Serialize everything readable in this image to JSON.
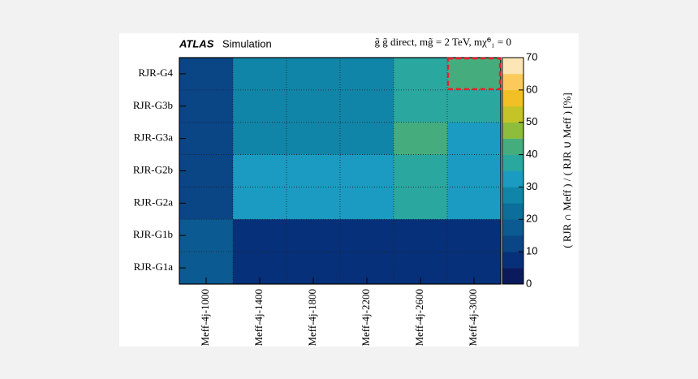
{
  "chart_data": {
    "type": "heatmap",
    "experiment": "ATLAS",
    "experiment_note": "Simulation",
    "process_label": "g̃ g̃ direct, mg̃ = 2 TeV, mχ̃⁰₁ = 0",
    "colorbar_label": "( RJR ∩ Meff ) / ( RJR ∪ Meff ) [%]",
    "x": [
      "Meff-4j-1000",
      "Meff-4j-1400",
      "Meff-4j-1800",
      "Meff-4j-2200",
      "Meff-4j-2600",
      "Meff-4j-3000"
    ],
    "y": [
      "RJR-G4",
      "RJR-G3b",
      "RJR-G3a",
      "RJR-G2b",
      "RJR-G2a",
      "RJR-G1b",
      "RJR-G1a"
    ],
    "values": [
      [
        12,
        28,
        28,
        28,
        38,
        42
      ],
      [
        10,
        25,
        25,
        25,
        37,
        37
      ],
      [
        10,
        28,
        28,
        28,
        42,
        30
      ],
      [
        11,
        30,
        30,
        30,
        37,
        30
      ],
      [
        11,
        30,
        30,
        30,
        37,
        30
      ],
      [
        17,
        8,
        8,
        8,
        8,
        8
      ],
      [
        17,
        8,
        8,
        8,
        8,
        8
      ]
    ],
    "zlim": [
      0,
      70
    ],
    "zticks": [
      0,
      10,
      20,
      30,
      40,
      50,
      60,
      70
    ],
    "colorscale": [
      "#0b1a5c",
      "#06307a",
      "#0a4586",
      "#0b5a92",
      "#0c6e9a",
      "#1185a8",
      "#1b9bc2",
      "#2aa8a0",
      "#45ad7d",
      "#8ebd3e",
      "#c4c428",
      "#f2c024",
      "#fcc95c",
      "#fde6b6"
    ],
    "grid": true,
    "highlight": [
      0,
      5
    ]
  }
}
